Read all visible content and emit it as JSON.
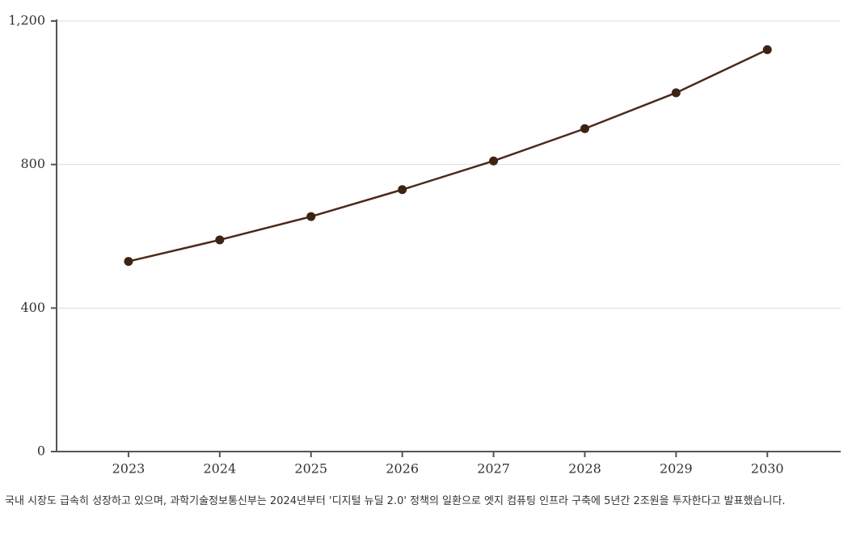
{
  "chart_data": {
    "type": "line",
    "categories": [
      "2023",
      "2024",
      "2025",
      "2026",
      "2027",
      "2028",
      "2029",
      "2030"
    ],
    "values": [
      530,
      590,
      655,
      730,
      810,
      900,
      1000,
      1120
    ],
    "color": "#4a2a1a",
    "marker_color": "#3d2314",
    "ylim": [
      0,
      1200
    ],
    "yticks": [
      0,
      400,
      800,
      {
        "value": 1200,
        "label": "1,200"
      }
    ],
    "grid": true,
    "caption": "국내 시장도 급속히 성장하고 있으며, 과학기술정보통신부는 2024년부터 '디지털 뉴딜 2.0' 정책의 일환으로 엣지 컴퓨팅 인프라 구축에 5년간 2조원을 투자한다고 발표했습니다."
  }
}
